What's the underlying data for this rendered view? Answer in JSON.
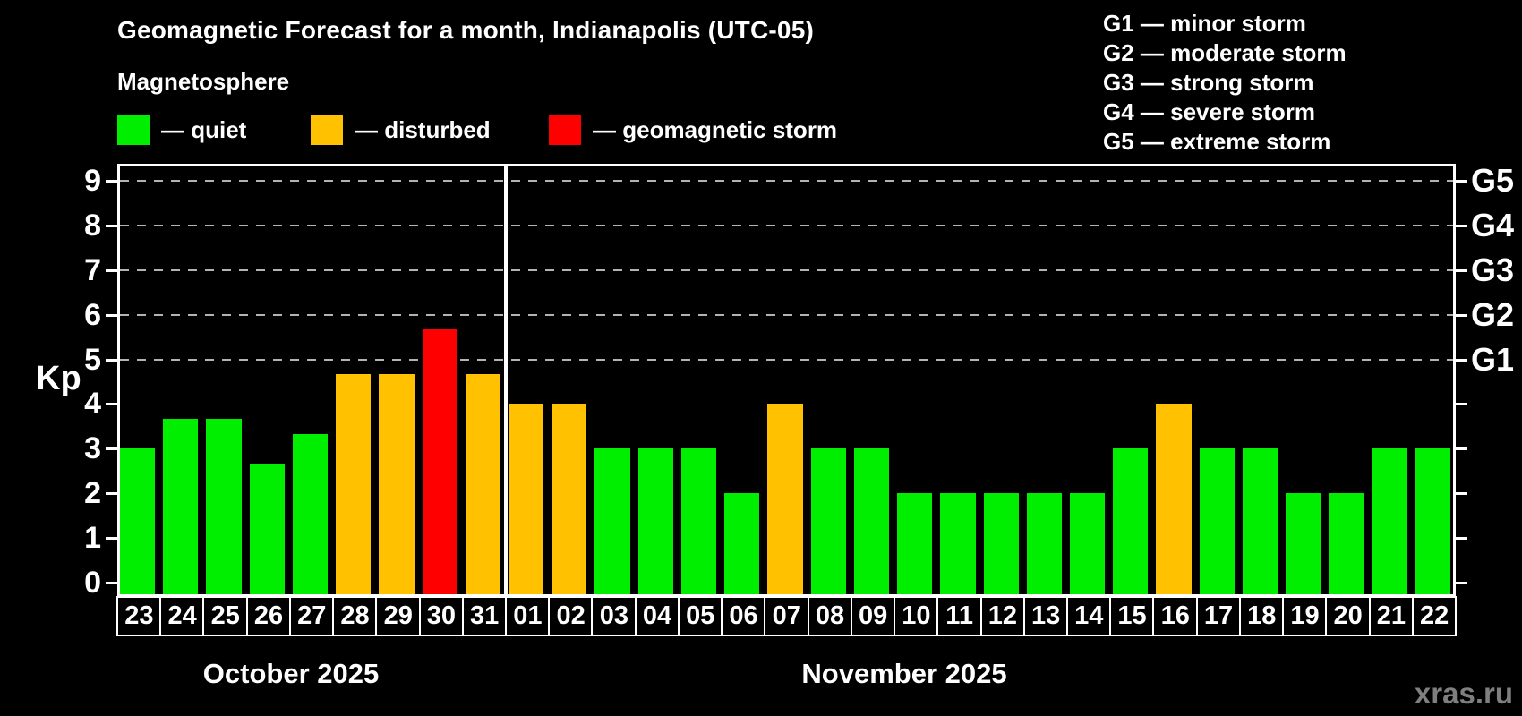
{
  "title": "Geomagnetic Forecast for a month, Indianapolis (UTC-05)",
  "subtitle": "Magnetosphere",
  "legend": [
    {
      "key": "quiet",
      "label": "— quiet"
    },
    {
      "key": "disturbed",
      "label": "— disturbed"
    },
    {
      "key": "storm",
      "label": "— geomagnetic storm"
    }
  ],
  "storm_scale_legend": [
    "G1 — minor storm",
    "G2 — moderate storm",
    "G3 — strong storm",
    "G4 — severe storm",
    "G5 — extreme storm"
  ],
  "watermark": "xras.ru",
  "chart_data": {
    "type": "bar",
    "ylabel": "Kp",
    "ylim": [
      -0.32,
      9.38
    ],
    "yticks": [
      0,
      1,
      2,
      3,
      4,
      5,
      6,
      7,
      8,
      9
    ],
    "gridlines_at": [
      5,
      6,
      7,
      8,
      9
    ],
    "grid": "dashed horizontal at Kp 5-9 only",
    "right_axis_labels": [
      {
        "kp": 5,
        "label": "G1"
      },
      {
        "kp": 6,
        "label": "G2"
      },
      {
        "kp": 7,
        "label": "G3"
      },
      {
        "kp": 8,
        "label": "G4"
      },
      {
        "kp": 9,
        "label": "G5"
      }
    ],
    "colors": {
      "quiet": "#00ee00",
      "disturbed": "#ffc100",
      "storm": "#ff0000"
    },
    "months": [
      {
        "label": "October 2025",
        "day_count": 9
      },
      {
        "label": "November 2025",
        "day_count": 22
      }
    ],
    "bars": [
      {
        "month": "October 2025",
        "day": "23",
        "kp": 3.0,
        "status": "quiet"
      },
      {
        "month": "October 2025",
        "day": "24",
        "kp": 3.67,
        "status": "quiet"
      },
      {
        "month": "October 2025",
        "day": "25",
        "kp": 3.67,
        "status": "quiet"
      },
      {
        "month": "October 2025",
        "day": "26",
        "kp": 2.67,
        "status": "quiet"
      },
      {
        "month": "October 2025",
        "day": "27",
        "kp": 3.33,
        "status": "quiet"
      },
      {
        "month": "October 2025",
        "day": "28",
        "kp": 4.67,
        "status": "disturbed"
      },
      {
        "month": "October 2025",
        "day": "29",
        "kp": 4.67,
        "status": "disturbed"
      },
      {
        "month": "October 2025",
        "day": "30",
        "kp": 5.67,
        "status": "storm"
      },
      {
        "month": "October 2025",
        "day": "31",
        "kp": 4.67,
        "status": "disturbed"
      },
      {
        "month": "November 2025",
        "day": "01",
        "kp": 4.0,
        "status": "disturbed"
      },
      {
        "month": "November 2025",
        "day": "02",
        "kp": 4.0,
        "status": "disturbed"
      },
      {
        "month": "November 2025",
        "day": "03",
        "kp": 3.0,
        "status": "quiet"
      },
      {
        "month": "November 2025",
        "day": "04",
        "kp": 3.0,
        "status": "quiet"
      },
      {
        "month": "November 2025",
        "day": "05",
        "kp": 3.0,
        "status": "quiet"
      },
      {
        "month": "November 2025",
        "day": "06",
        "kp": 2.0,
        "status": "quiet"
      },
      {
        "month": "November 2025",
        "day": "07",
        "kp": 4.0,
        "status": "disturbed"
      },
      {
        "month": "November 2025",
        "day": "08",
        "kp": 3.0,
        "status": "quiet"
      },
      {
        "month": "November 2025",
        "day": "09",
        "kp": 3.0,
        "status": "quiet"
      },
      {
        "month": "November 2025",
        "day": "10",
        "kp": 2.0,
        "status": "quiet"
      },
      {
        "month": "November 2025",
        "day": "11",
        "kp": 2.0,
        "status": "quiet"
      },
      {
        "month": "November 2025",
        "day": "12",
        "kp": 2.0,
        "status": "quiet"
      },
      {
        "month": "November 2025",
        "day": "13",
        "kp": 2.0,
        "status": "quiet"
      },
      {
        "month": "November 2025",
        "day": "14",
        "kp": 2.0,
        "status": "quiet"
      },
      {
        "month": "November 2025",
        "day": "15",
        "kp": 3.0,
        "status": "quiet"
      },
      {
        "month": "November 2025",
        "day": "16",
        "kp": 4.0,
        "status": "disturbed"
      },
      {
        "month": "November 2025",
        "day": "17",
        "kp": 3.0,
        "status": "quiet"
      },
      {
        "month": "November 2025",
        "day": "18",
        "kp": 3.0,
        "status": "quiet"
      },
      {
        "month": "November 2025",
        "day": "19",
        "kp": 2.0,
        "status": "quiet"
      },
      {
        "month": "November 2025",
        "day": "20",
        "kp": 2.0,
        "status": "quiet"
      },
      {
        "month": "November 2025",
        "day": "21",
        "kp": 3.0,
        "status": "quiet"
      },
      {
        "month": "November 2025",
        "day": "22",
        "kp": 3.0,
        "status": "quiet"
      }
    ]
  }
}
